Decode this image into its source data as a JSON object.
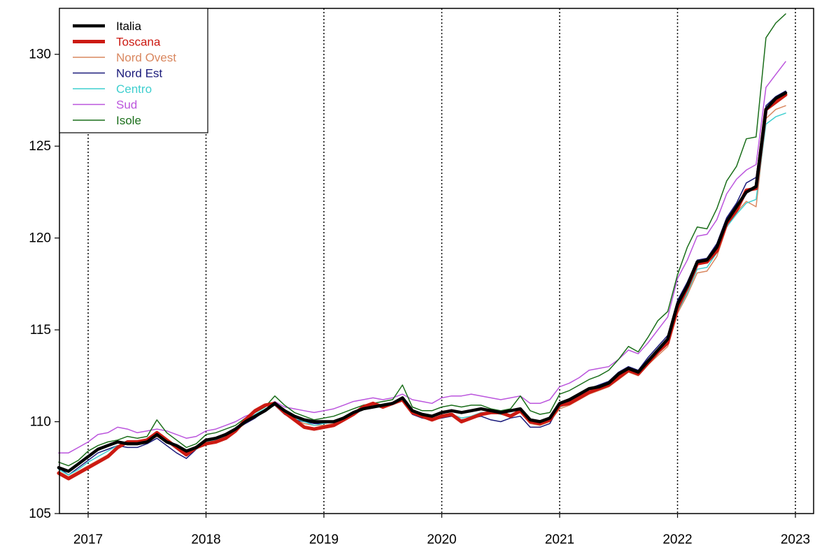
{
  "chart_data": {
    "type": "line",
    "title": "",
    "xlabel": "",
    "ylabel": "",
    "xlim": [
      "2016-10",
      "2023-02"
    ],
    "ylim": [
      105,
      132.5
    ],
    "x_ticks": [
      "2017",
      "2018",
      "2019",
      "2020",
      "2021",
      "2022",
      "2023"
    ],
    "y_ticks": [
      "105",
      "110",
      "115",
      "120",
      "125",
      "130"
    ],
    "grid": "vertical dotted lines at each January",
    "legend_position": "top-left",
    "x": [
      "2016-10",
      "2016-11",
      "2016-12",
      "2017-01",
      "2017-02",
      "2017-03",
      "2017-04",
      "2017-05",
      "2017-06",
      "2017-07",
      "2017-08",
      "2017-09",
      "2017-10",
      "2017-11",
      "2017-12",
      "2018-01",
      "2018-02",
      "2018-03",
      "2018-04",
      "2018-05",
      "2018-06",
      "2018-07",
      "2018-08",
      "2018-09",
      "2018-10",
      "2018-11",
      "2018-12",
      "2019-01",
      "2019-02",
      "2019-03",
      "2019-04",
      "2019-05",
      "2019-06",
      "2019-07",
      "2019-08",
      "2019-09",
      "2019-10",
      "2019-11",
      "2019-12",
      "2020-01",
      "2020-02",
      "2020-03",
      "2020-04",
      "2020-05",
      "2020-06",
      "2020-07",
      "2020-08",
      "2020-09",
      "2020-10",
      "2020-11",
      "2020-12",
      "2021-01",
      "2021-02",
      "2021-03",
      "2021-04",
      "2021-05",
      "2021-06",
      "2021-07",
      "2021-08",
      "2021-09",
      "2021-10",
      "2021-11",
      "2021-12",
      "2022-01",
      "2022-02",
      "2022-03",
      "2022-04",
      "2022-05",
      "2022-06",
      "2022-07",
      "2022-08",
      "2022-09",
      "2022-10",
      "2022-11",
      "2022-12"
    ],
    "series": [
      {
        "name": "Italia",
        "color": "#000000",
        "width": 4.5,
        "values": [
          107.5,
          107.3,
          107.7,
          108.1,
          108.5,
          108.7,
          108.9,
          108.8,
          108.8,
          108.9,
          109.3,
          108.9,
          108.7,
          108.4,
          108.6,
          109.0,
          109.1,
          109.3,
          109.6,
          110.0,
          110.3,
          110.6,
          111.0,
          110.6,
          110.3,
          110.1,
          110.0,
          110.0,
          110.0,
          110.2,
          110.5,
          110.7,
          110.8,
          110.9,
          111.0,
          111.3,
          110.6,
          110.4,
          110.3,
          110.5,
          110.6,
          110.5,
          110.6,
          110.7,
          110.6,
          110.5,
          110.6,
          110.7,
          110.1,
          110.0,
          110.2,
          111.0,
          111.2,
          111.5,
          111.8,
          111.9,
          112.1,
          112.6,
          112.9,
          112.7,
          113.3,
          113.9,
          114.5,
          116.4,
          117.4,
          118.7,
          118.8,
          119.5,
          120.9,
          121.7,
          122.5,
          122.8,
          127.0,
          127.6,
          127.9
        ]
      },
      {
        "name": "Toscana",
        "color": "#cc1a12",
        "width": 5,
        "values": [
          107.2,
          106.9,
          107.2,
          107.5,
          107.8,
          108.1,
          108.6,
          108.9,
          108.9,
          109.0,
          109.4,
          109.0,
          108.6,
          108.2,
          108.6,
          108.8,
          108.9,
          109.1,
          109.5,
          110.1,
          110.6,
          110.9,
          111.0,
          110.5,
          110.1,
          109.7,
          109.6,
          109.7,
          109.8,
          110.1,
          110.4,
          110.8,
          111.0,
          110.8,
          111.0,
          111.2,
          110.5,
          110.3,
          110.1,
          110.3,
          110.4,
          110.0,
          110.2,
          110.4,
          110.5,
          110.5,
          110.3,
          110.6,
          110.0,
          109.9,
          110.1,
          110.9,
          111.0,
          111.3,
          111.6,
          111.8,
          112.0,
          112.4,
          112.8,
          112.6,
          113.2,
          113.8,
          114.3,
          116.2,
          117.3,
          118.6,
          118.7,
          119.3,
          120.8,
          121.5,
          122.6,
          122.7,
          127.0,
          127.4,
          127.8
        ]
      },
      {
        "name": "Nord Ovest",
        "color": "#d9875f",
        "width": 1.5,
        "values": [
          107.3,
          107.0,
          107.3,
          107.6,
          107.9,
          108.2,
          108.6,
          108.8,
          108.8,
          108.9,
          109.2,
          108.9,
          108.6,
          108.2,
          108.5,
          108.8,
          108.9,
          109.1,
          109.5,
          109.9,
          110.2,
          110.6,
          111.0,
          110.5,
          110.1,
          109.9,
          109.8,
          109.8,
          109.9,
          110.2,
          110.4,
          110.7,
          110.8,
          110.9,
          111.0,
          111.2,
          110.5,
          110.3,
          110.2,
          110.3,
          110.4,
          110.2,
          110.3,
          110.5,
          110.5,
          110.4,
          110.3,
          110.5,
          109.9,
          109.8,
          110.0,
          110.7,
          110.9,
          111.2,
          111.5,
          111.7,
          111.9,
          112.3,
          112.7,
          112.5,
          113.1,
          113.6,
          114.1,
          115.9,
          116.9,
          118.1,
          118.2,
          119.0,
          120.6,
          121.4,
          122.0,
          121.7,
          126.5,
          127.0,
          127.2
        ]
      },
      {
        "name": "Nord Est",
        "color": "#1a1a7a",
        "width": 1.5,
        "values": [
          107.5,
          107.1,
          107.5,
          107.9,
          108.3,
          108.5,
          108.7,
          108.6,
          108.6,
          108.8,
          109.1,
          108.7,
          108.3,
          108.0,
          108.5,
          108.9,
          109.0,
          109.2,
          109.6,
          109.9,
          110.2,
          110.6,
          110.9,
          110.4,
          110.1,
          110.0,
          109.9,
          109.9,
          110.0,
          110.2,
          110.5,
          110.7,
          110.8,
          110.9,
          111.0,
          111.2,
          110.4,
          110.2,
          110.1,
          110.2,
          110.3,
          110.1,
          110.2,
          110.3,
          110.1,
          110.0,
          110.2,
          110.3,
          109.7,
          109.7,
          109.9,
          110.9,
          111.1,
          111.4,
          111.8,
          112.0,
          112.2,
          112.7,
          113.0,
          112.8,
          113.5,
          114.1,
          114.7,
          116.6,
          117.6,
          118.8,
          118.9,
          119.7,
          121.1,
          121.9,
          123.0,
          123.3,
          127.2,
          127.7,
          128.0
        ]
      },
      {
        "name": "Centro",
        "color": "#3fcfcf",
        "width": 1.5,
        "values": [
          107.4,
          107.1,
          107.4,
          107.8,
          108.1,
          108.4,
          108.7,
          108.8,
          108.8,
          108.9,
          109.3,
          108.9,
          108.6,
          108.3,
          108.5,
          108.9,
          109.0,
          109.2,
          109.5,
          110.0,
          110.4,
          110.7,
          111.0,
          110.5,
          110.2,
          110.0,
          109.8,
          109.9,
          110.0,
          110.2,
          110.5,
          110.7,
          110.9,
          110.8,
          111.0,
          111.2,
          110.5,
          110.3,
          110.1,
          110.3,
          110.4,
          110.2,
          110.3,
          110.5,
          110.5,
          110.4,
          110.4,
          110.6,
          110.0,
          109.9,
          110.1,
          110.8,
          111.0,
          111.3,
          111.6,
          111.8,
          112.0,
          112.4,
          112.8,
          112.6,
          113.2,
          113.7,
          114.3,
          116.0,
          117.0,
          118.3,
          118.4,
          119.2,
          120.6,
          121.3,
          121.9,
          122.1,
          126.2,
          126.6,
          126.8
        ]
      },
      {
        "name": "Sud",
        "color": "#bb55dd",
        "width": 1.5,
        "values": [
          108.3,
          108.3,
          108.6,
          108.9,
          109.3,
          109.4,
          109.7,
          109.6,
          109.4,
          109.5,
          109.6,
          109.5,
          109.3,
          109.1,
          109.2,
          109.5,
          109.6,
          109.8,
          110.0,
          110.3,
          110.5,
          110.8,
          111.1,
          110.8,
          110.7,
          110.6,
          110.5,
          110.6,
          110.7,
          110.9,
          111.1,
          111.2,
          111.3,
          111.2,
          111.3,
          111.5,
          111.2,
          111.1,
          111.0,
          111.3,
          111.4,
          111.4,
          111.5,
          111.4,
          111.3,
          111.2,
          111.3,
          111.4,
          111.0,
          111.0,
          111.2,
          111.9,
          112.1,
          112.4,
          112.8,
          112.9,
          113.0,
          113.4,
          113.9,
          113.7,
          114.3,
          115.0,
          115.7,
          117.8,
          118.8,
          120.1,
          120.2,
          121.0,
          122.4,
          123.2,
          123.7,
          124.0,
          128.2,
          128.9,
          129.6
        ]
      },
      {
        "name": "Isole",
        "color": "#1a6e1a",
        "width": 1.5,
        "values": [
          107.8,
          107.6,
          107.9,
          108.4,
          108.7,
          108.9,
          109.0,
          109.2,
          109.1,
          109.2,
          110.1,
          109.4,
          109.0,
          108.6,
          108.8,
          109.3,
          109.4,
          109.6,
          109.8,
          110.2,
          110.5,
          110.8,
          111.4,
          110.9,
          110.5,
          110.3,
          110.1,
          110.2,
          110.3,
          110.5,
          110.7,
          110.9,
          111.0,
          111.1,
          111.2,
          112.0,
          110.8,
          110.6,
          110.6,
          110.8,
          110.9,
          110.8,
          110.9,
          110.9,
          110.7,
          110.6,
          110.7,
          111.4,
          110.6,
          110.4,
          110.5,
          111.5,
          111.7,
          112.0,
          112.3,
          112.5,
          112.8,
          113.4,
          114.1,
          113.8,
          114.6,
          115.5,
          116.0,
          118.0,
          119.5,
          120.6,
          120.5,
          121.6,
          123.1,
          123.9,
          125.4,
          125.5,
          130.9,
          131.7,
          132.2
        ]
      }
    ]
  }
}
